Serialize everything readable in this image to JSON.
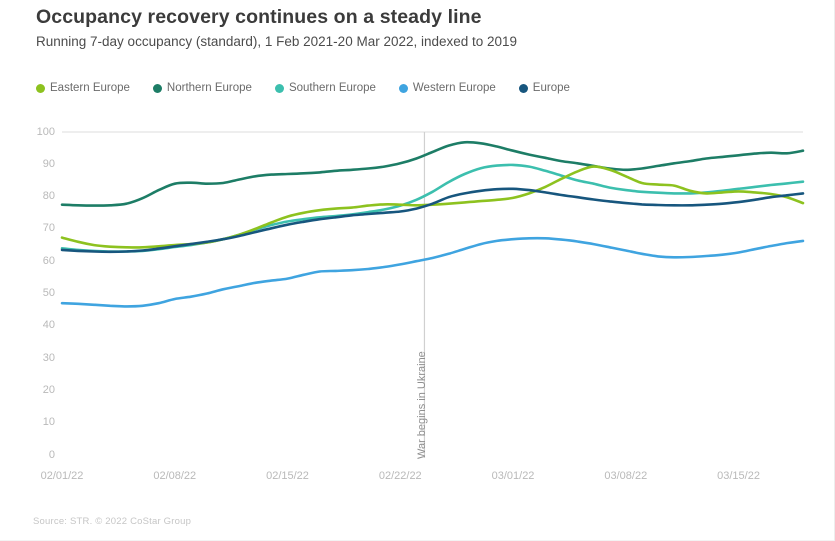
{
  "header": {
    "title": "Occupancy recovery continues on a steady line",
    "subtitle": "Running 7-day occupancy (standard), 1 Feb 2021-20 Mar 2022, indexed to 2019"
  },
  "legend": {
    "items": [
      {
        "label": "Eastern Europe",
        "color": "#8dc21f"
      },
      {
        "label": "Northern Europe",
        "color": "#1d7d66"
      },
      {
        "label": "Southern Europe",
        "color": "#3cbfae"
      },
      {
        "label": "Western Europe",
        "color": "#3fa4e0"
      },
      {
        "label": "Europe",
        "color": "#17567e"
      }
    ]
  },
  "chart_data": {
    "type": "line",
    "title": "Occupancy recovery continues on a steady line",
    "subtitle": "Running 7-day occupancy (standard), 1 Feb 2021-20 Mar 2022, indexed to 2019",
    "ylim": [
      0,
      100
    ],
    "y_ticks": [
      0,
      10,
      20,
      30,
      40,
      50,
      60,
      70,
      80,
      90,
      100
    ],
    "gridline_values": [
      100
    ],
    "legend_position": "top",
    "x": [
      "02/01/22",
      "02/02/22",
      "02/03/22",
      "02/04/22",
      "02/05/22",
      "02/06/22",
      "02/07/22",
      "02/08/22",
      "02/09/22",
      "02/10/22",
      "02/11/22",
      "02/12/22",
      "02/13/22",
      "02/14/22",
      "02/15/22",
      "02/16/22",
      "02/17/22",
      "02/18/22",
      "02/19/22",
      "02/20/22",
      "02/21/22",
      "02/22/22",
      "02/23/22",
      "02/24/22",
      "02/25/22",
      "02/26/22",
      "02/27/22",
      "02/28/22",
      "03/01/22",
      "03/02/22",
      "03/03/22",
      "03/04/22",
      "03/05/22",
      "03/06/22",
      "03/07/22",
      "03/08/22",
      "03/09/22",
      "03/10/22",
      "03/11/22",
      "03/12/22",
      "03/13/22",
      "03/14/22",
      "03/15/22",
      "03/16/22",
      "03/17/22",
      "03/18/22",
      "03/19/22"
    ],
    "x_tick_labels": [
      "02/01/22",
      "02/08/22",
      "02/15/22",
      "02/22/22",
      "03/01/22",
      "03/08/22",
      "03/15/22"
    ],
    "x_tick_indices": [
      0,
      7,
      14,
      21,
      28,
      35,
      42
    ],
    "series": [
      {
        "name": "Eastern Europe",
        "color": "#8dc21f",
        "values": [
          67.3,
          66,
          65,
          64.5,
          64.3,
          64.3,
          64.6,
          65,
          65.3,
          65.8,
          66.8,
          68.2,
          70,
          72,
          73.8,
          75,
          75.8,
          76.3,
          76.6,
          77.2,
          77.6,
          77.5,
          77.3,
          77.5,
          77.8,
          78.2,
          78.6,
          79,
          79.6,
          81,
          83,
          85.5,
          87.8,
          89.3,
          88.3,
          86.3,
          84.2,
          83.7,
          83.4,
          81.8,
          81,
          81.3,
          81.6,
          81.3,
          80.8,
          79.8,
          78
        ]
      },
      {
        "name": "Northern Europe",
        "color": "#1d7d66",
        "values": [
          77.5,
          77.3,
          77.2,
          77.3,
          77.8,
          79.5,
          82,
          84,
          84.3,
          84,
          84.2,
          85.3,
          86.3,
          86.8,
          87,
          87.2,
          87.5,
          88,
          88.3,
          88.7,
          89.3,
          90.3,
          91.8,
          93.8,
          95.8,
          96.8,
          96.5,
          95.5,
          94.2,
          93,
          92,
          91,
          90.3,
          89.5,
          88.7,
          88.3,
          88.7,
          89.5,
          90.3,
          91,
          91.8,
          92.3,
          92.8,
          93.3,
          93.6,
          93.4,
          94.2
        ]
      },
      {
        "name": "Southern Europe",
        "color": "#3cbfae",
        "values": [
          64,
          63.5,
          63.2,
          63,
          63,
          63.2,
          63.7,
          64.4,
          65,
          65.8,
          66.8,
          68.2,
          69.8,
          71.2,
          72.3,
          73,
          73.6,
          74,
          74.5,
          75.2,
          76,
          77.2,
          79,
          81.5,
          84.5,
          87,
          88.8,
          89.6,
          89.8,
          89.3,
          88,
          86.5,
          85,
          84,
          82.8,
          82,
          81.5,
          81.2,
          81,
          81,
          81.3,
          81.8,
          82.4,
          83,
          83.6,
          84.1,
          84.6
        ]
      },
      {
        "name": "Western Europe",
        "color": "#3fa4e0",
        "values": [
          47,
          46.8,
          46.5,
          46.2,
          46,
          46.2,
          47,
          48.3,
          49,
          50,
          51.3,
          52.3,
          53.3,
          54,
          54.6,
          55.8,
          56.8,
          57,
          57.2,
          57.6,
          58.2,
          59,
          60,
          61,
          62.3,
          63.8,
          65.3,
          66.3,
          66.8,
          67.1,
          67.1,
          66.7,
          66.1,
          65.3,
          64.3,
          63.3,
          62.3,
          61.5,
          61.2,
          61.3,
          61.6,
          62,
          62.7,
          63.7,
          64.7,
          65.6,
          66.3
        ]
      },
      {
        "name": "Europe",
        "color": "#17567e",
        "values": [
          63.5,
          63.2,
          63,
          62.9,
          63,
          63.3,
          63.9,
          64.6,
          65.3,
          66,
          66.8,
          67.8,
          69,
          70.2,
          71.3,
          72.2,
          73,
          73.6,
          74.2,
          74.6,
          75,
          75.4,
          76.3,
          77.8,
          79.8,
          81,
          81.8,
          82.3,
          82.4,
          82,
          81.3,
          80.5,
          79.8,
          79.1,
          78.5,
          78,
          77.6,
          77.4,
          77.3,
          77.3,
          77.5,
          77.8,
          78.3,
          79,
          79.8,
          80.4,
          81
        ]
      }
    ],
    "annotation": {
      "text": "War begins in Ukraine",
      "x_index": 22.5
    }
  },
  "footer": {
    "source": "Source: STR. © 2022 CoStar Group"
  }
}
